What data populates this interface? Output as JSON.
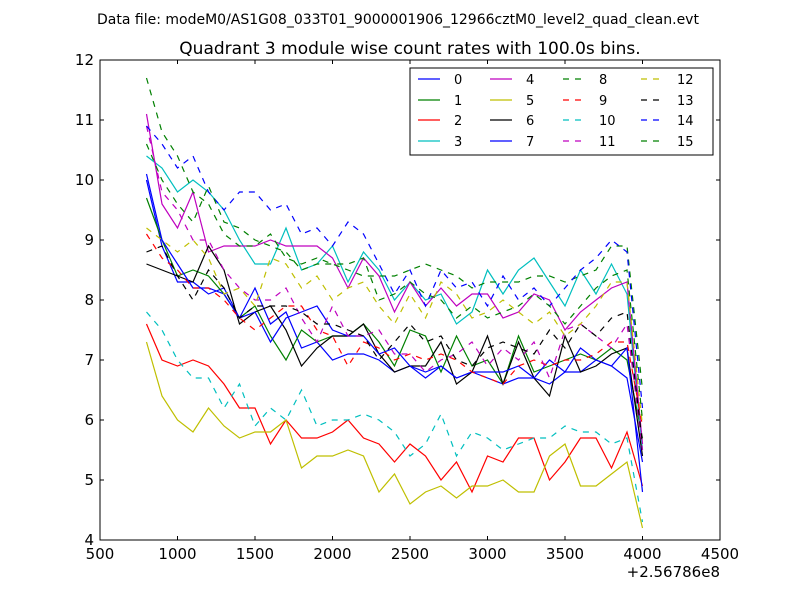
{
  "suptitle": "Data file: modeM0/AS1G08_033T01_9000001906_12966cztM0_level2_quad_clean.evt",
  "chart_data": {
    "type": "line",
    "title": "Quadrant 3 module wise count rates with 100.0s bins.",
    "xlabel": "",
    "ylabel": "",
    "xlim": [
      500,
      4500
    ],
    "ylim": [
      4,
      12
    ],
    "x_ticks": [
      500,
      1000,
      1500,
      2000,
      2500,
      3000,
      3500,
      4000,
      4500
    ],
    "y_ticks": [
      4,
      5,
      6,
      7,
      8,
      9,
      10,
      11,
      12
    ],
    "x_tick_labels": [
      "500",
      "1000",
      "1500",
      "2000",
      "2500",
      "3000",
      "3500",
      "4000",
      "4500"
    ],
    "y_tick_labels": [
      "4",
      "5",
      "6",
      "7",
      "8",
      "9",
      "10",
      "11",
      "12"
    ],
    "x_offset_label": "+2.56786e8",
    "legend_position": "upper-right",
    "x": [
      800,
      900,
      1000,
      1100,
      1200,
      1300,
      1400,
      1500,
      1600,
      1700,
      1800,
      1900,
      2000,
      2100,
      2200,
      2300,
      2400,
      2500,
      2600,
      2700,
      2800,
      2900,
      3000,
      3100,
      3200,
      3300,
      3400,
      3500,
      3600,
      3700,
      3800,
      3900,
      4000
    ],
    "series": [
      {
        "name": "0",
        "color": "#0000ff",
        "dash": "solid",
        "values": [
          10.0,
          8.9,
          8.3,
          8.3,
          8.1,
          8.2,
          7.7,
          8.2,
          7.6,
          7.8,
          7.2,
          7.3,
          7.0,
          7.1,
          7.1,
          7.0,
          6.8,
          6.9,
          6.7,
          6.9,
          6.7,
          6.8,
          6.7,
          6.6,
          6.7,
          6.7,
          6.6,
          6.8,
          6.8,
          7.0,
          6.9,
          6.7,
          5.3
        ]
      },
      {
        "name": "1",
        "color": "#008000",
        "dash": "solid",
        "values": [
          9.7,
          9.0,
          8.4,
          8.5,
          8.4,
          8.1,
          7.7,
          7.9,
          7.4,
          7.0,
          7.5,
          7.3,
          7.4,
          7.4,
          7.6,
          7.3,
          6.9,
          7.5,
          7.4,
          6.8,
          7.4,
          6.9,
          7.0,
          6.6,
          7.4,
          6.8,
          6.9,
          7.0,
          7.1,
          7.0,
          7.2,
          7.0,
          5.7
        ]
      },
      {
        "name": "2",
        "color": "#ff0000",
        "dash": "solid",
        "values": [
          7.6,
          7.0,
          6.9,
          7.0,
          6.9,
          6.6,
          6.2,
          6.2,
          5.6,
          6.0,
          5.7,
          5.7,
          5.8,
          6.0,
          5.7,
          5.6,
          5.3,
          5.6,
          5.4,
          5.0,
          5.3,
          4.8,
          5.4,
          5.3,
          5.7,
          5.7,
          5.0,
          5.3,
          5.7,
          5.7,
          5.2,
          5.8,
          4.9
        ]
      },
      {
        "name": "3",
        "color": "#00bfbf",
        "dash": "solid",
        "values": [
          10.4,
          10.2,
          9.8,
          10.0,
          9.8,
          9.5,
          9.0,
          8.6,
          8.6,
          9.2,
          8.5,
          8.6,
          8.9,
          8.3,
          8.8,
          8.5,
          8.0,
          8.3,
          8.0,
          8.1,
          7.6,
          7.8,
          8.5,
          8.1,
          8.5,
          8.7,
          8.3,
          7.9,
          8.5,
          8.1,
          8.6,
          8.1,
          5.5
        ]
      },
      {
        "name": "4",
        "color": "#bf00bf",
        "dash": "solid",
        "values": [
          11.1,
          9.6,
          9.2,
          9.8,
          8.8,
          8.9,
          8.9,
          8.9,
          9.0,
          8.9,
          8.9,
          8.9,
          8.7,
          8.2,
          8.7,
          8.4,
          7.8,
          8.3,
          7.9,
          8.2,
          7.9,
          8.1,
          8.1,
          7.7,
          7.8,
          8.1,
          8.0,
          7.5,
          7.8,
          8.0,
          8.2,
          8.3,
          5.6
        ]
      },
      {
        "name": "5",
        "color": "#bfbf00",
        "dash": "solid",
        "values": [
          7.3,
          6.4,
          6.0,
          5.8,
          6.2,
          5.9,
          5.7,
          5.8,
          5.8,
          6.0,
          5.2,
          5.4,
          5.4,
          5.5,
          5.4,
          4.8,
          5.1,
          4.6,
          4.8,
          4.9,
          4.7,
          4.9,
          4.9,
          5.0,
          4.8,
          4.8,
          5.4,
          5.6,
          4.9,
          4.9,
          5.1,
          5.3,
          4.2
        ]
      },
      {
        "name": "6",
        "color": "#000000",
        "dash": "solid",
        "values": [
          8.6,
          8.5,
          8.4,
          8.3,
          8.9,
          8.5,
          7.6,
          7.8,
          7.9,
          7.5,
          6.9,
          7.2,
          7.4,
          7.4,
          7.6,
          7.1,
          6.8,
          6.9,
          6.9,
          7.3,
          6.6,
          6.8,
          7.4,
          6.6,
          7.3,
          6.7,
          6.4,
          7.4,
          6.8,
          6.9,
          7.1,
          7.2,
          5.4
        ]
      },
      {
        "name": "7",
        "color": "#0000ff",
        "dash": "solid",
        "values": [
          10.1,
          9.0,
          8.6,
          8.2,
          8.2,
          8.1,
          7.7,
          7.8,
          7.3,
          7.7,
          7.8,
          7.9,
          7.5,
          7.4,
          7.4,
          7.1,
          7.2,
          6.9,
          6.8,
          6.9,
          6.7,
          6.8,
          6.8,
          6.8,
          6.9,
          6.7,
          7.0,
          6.8,
          7.2,
          7.0,
          6.9,
          7.2,
          4.8
        ]
      },
      {
        "name": "8",
        "color": "#008000",
        "dash": "dashed",
        "values": [
          11.7,
          10.8,
          10.4,
          9.8,
          9.6,
          9.1,
          8.9,
          8.9,
          9.1,
          8.7,
          8.6,
          8.7,
          8.6,
          8.5,
          8.4,
          8.4,
          8.4,
          8.5,
          8.6,
          8.5,
          8.4,
          8.2,
          8.3,
          8.3,
          8.3,
          8.4,
          8.4,
          8.3,
          8.4,
          8.5,
          8.9,
          8.9,
          6.5
        ]
      },
      {
        "name": "9",
        "color": "#ff0000",
        "dash": "dashed",
        "values": [
          9.1,
          8.7,
          8.5,
          8.2,
          8.2,
          8.0,
          7.7,
          7.5,
          7.7,
          7.9,
          7.9,
          7.5,
          7.4,
          6.9,
          7.3,
          7.2,
          7.0,
          7.1,
          7.0,
          7.1,
          7.0,
          6.8,
          6.7,
          6.6,
          6.9,
          7.0,
          6.9,
          7.0,
          7.0,
          7.1,
          7.3,
          7.3,
          5.9
        ]
      },
      {
        "name": "10",
        "color": "#00bfbf",
        "dash": "dashed",
        "values": [
          7.8,
          7.5,
          7.0,
          6.7,
          6.7,
          6.2,
          6.6,
          5.9,
          6.2,
          6.0,
          6.5,
          5.9,
          6.0,
          6.0,
          6.1,
          6.0,
          5.8,
          5.4,
          5.6,
          6.1,
          5.4,
          5.8,
          5.7,
          5.5,
          5.6,
          5.7,
          5.7,
          5.9,
          5.8,
          5.8,
          5.6,
          5.7,
          4.3
        ]
      },
      {
        "name": "11",
        "color": "#bf00bf",
        "dash": "dashed",
        "values": [
          10.9,
          9.8,
          9.5,
          9.0,
          9.0,
          8.5,
          8.2,
          8.0,
          8.0,
          8.2,
          7.7,
          7.3,
          7.9,
          7.4,
          7.4,
          7.5,
          7.1,
          7.1,
          6.8,
          7.0,
          7.1,
          7.3,
          6.9,
          7.2,
          7.0,
          7.3,
          6.7,
          7.5,
          7.6,
          7.4,
          7.2,
          7.6,
          5.5
        ]
      },
      {
        "name": "12",
        "color": "#bfbf00",
        "dash": "dashed",
        "values": [
          9.2,
          9.0,
          8.8,
          9.0,
          8.7,
          8.1,
          8.2,
          7.9,
          8.7,
          8.6,
          8.2,
          8.4,
          8.0,
          8.2,
          8.3,
          7.9,
          7.6,
          8.1,
          7.7,
          8.3,
          8.1,
          7.7,
          7.8,
          8.0,
          7.8,
          7.6,
          7.8,
          7.4,
          7.6,
          7.9,
          8.3,
          8.3,
          5.9
        ]
      },
      {
        "name": "13",
        "color": "#000000",
        "dash": "dashed",
        "values": [
          8.8,
          8.9,
          8.4,
          8.0,
          8.5,
          8.2,
          7.7,
          7.9,
          7.9,
          7.9,
          7.8,
          7.6,
          7.6,
          7.5,
          7.4,
          7.0,
          7.3,
          7.6,
          7.3,
          7.4,
          7.0,
          6.9,
          7.2,
          7.3,
          7.2,
          7.1,
          7.5,
          7.2,
          7.6,
          7.4,
          7.7,
          7.8,
          5.6
        ]
      },
      {
        "name": "14",
        "color": "#0000ff",
        "dash": "dashed",
        "values": [
          10.9,
          10.6,
          10.2,
          10.4,
          9.8,
          9.5,
          9.8,
          9.8,
          9.5,
          9.6,
          9.1,
          9.2,
          8.9,
          9.3,
          9.1,
          8.6,
          8.1,
          8.5,
          7.9,
          8.5,
          8.2,
          8.3,
          7.9,
          8.4,
          8.0,
          8.2,
          7.9,
          8.2,
          8.5,
          8.7,
          9.0,
          8.8,
          6.2
        ]
      },
      {
        "name": "15",
        "color": "#008000",
        "dash": "dashed",
        "values": [
          10.6,
          10.0,
          9.6,
          9.3,
          9.9,
          9.3,
          9.2,
          9.0,
          8.9,
          8.8,
          8.5,
          8.6,
          8.6,
          8.6,
          8.7,
          8.0,
          8.1,
          8.3,
          8.1,
          8.0,
          7.7,
          7.9,
          7.7,
          7.8,
          7.9,
          8.1,
          7.9,
          7.6,
          7.9,
          8.2,
          8.4,
          8.5,
          6.0
        ]
      }
    ]
  }
}
